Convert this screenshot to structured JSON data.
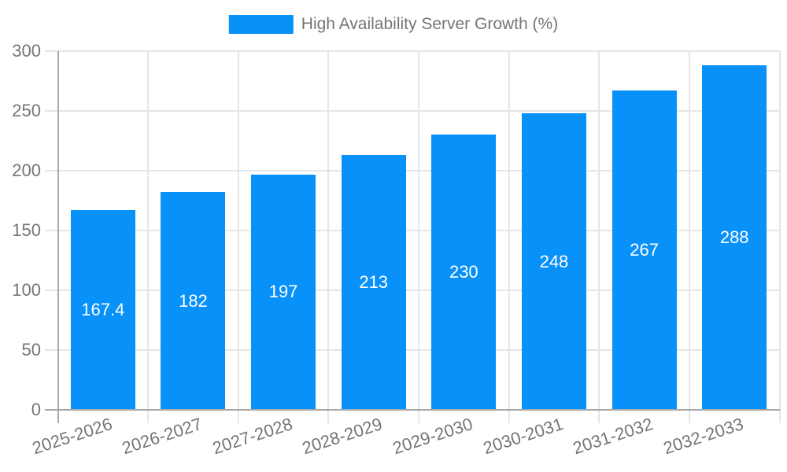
{
  "legend": {
    "label": "High Availability Server Growth (%)",
    "swatch_color": "#0991FA"
  },
  "chart_data": {
    "type": "bar",
    "title": "High Availability Server Growth (%)",
    "categories": [
      "2025-2026",
      "2026-2027",
      "2027-2028",
      "2028-2029",
      "2029-2030",
      "2030-2031",
      "2031-2032",
      "2032-2033"
    ],
    "values": [
      167.4,
      182,
      197,
      213,
      230,
      248,
      267,
      288
    ],
    "value_labels": [
      "167.4",
      "182",
      "197",
      "213",
      "230",
      "248",
      "267",
      "288"
    ],
    "xlabel": "",
    "ylabel": "",
    "ylim": [
      0,
      300
    ],
    "yticks": [
      0,
      50,
      100,
      150,
      200,
      250,
      300
    ],
    "grid": true,
    "legend_position": "top-center",
    "bar_color": "#0991FA",
    "value_label_color": "#FFFFFF",
    "axis_text_color": "#757575",
    "gridline_color": "#E6E6E6",
    "axis_line_color": "#A8A8A8",
    "background_color": "#FFFFFF"
  }
}
